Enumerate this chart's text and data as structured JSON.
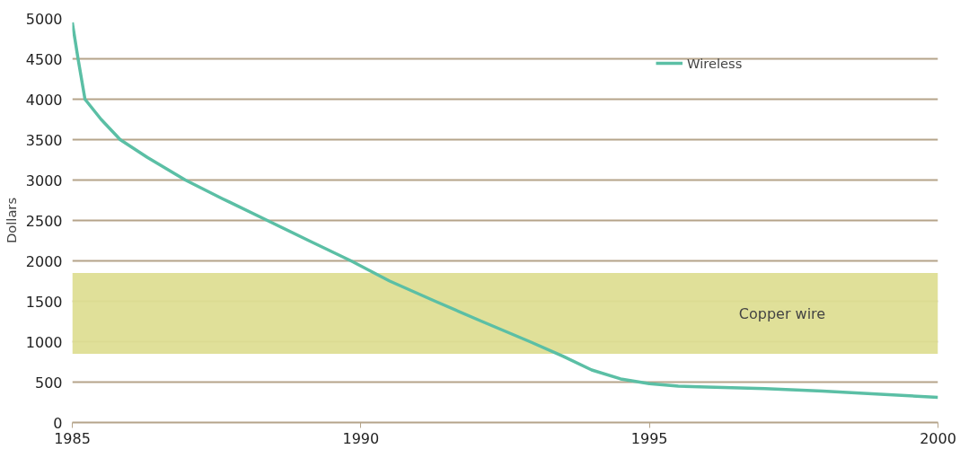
{
  "chart_data": {
    "type": "line",
    "ylabel": "Dollars",
    "x": [
      1985,
      1985.1,
      1985.22,
      1985.5,
      1985.83,
      1986.3,
      1986.96,
      1987.6,
      1988.38,
      1989.1,
      1989.83,
      1990.5,
      1991.29,
      1992.1,
      1992.93,
      1993.5,
      1994,
      1994.5,
      1995,
      1995.5,
      1996,
      1997,
      1998,
      1999,
      2000
    ],
    "series": [
      {
        "name": "Wireless",
        "color": "#5bbfa5",
        "values": [
          4950,
          4500,
          4000,
          3750,
          3500,
          3280,
          3000,
          2770,
          2500,
          2250,
          2000,
          1750,
          1500,
          1250,
          1000,
          820,
          650,
          540,
          480,
          450,
          440,
          420,
          390,
          350,
          310
        ]
      }
    ],
    "xlim": [
      1985,
      2000
    ],
    "xticks": [
      1985,
      1990,
      1995,
      2000
    ],
    "ylim": [
      0,
      5000
    ],
    "yticks": [
      0,
      500,
      1000,
      1500,
      2000,
      2500,
      3000,
      3500,
      4000,
      4500,
      5000
    ],
    "bands": [
      {
        "axis": "y",
        "from": 850,
        "to": 1850,
        "label": "Copper wire",
        "color": "#dede94"
      }
    ],
    "grid": "y",
    "legend": "top right",
    "line_style": "solid",
    "marker": "none"
  }
}
